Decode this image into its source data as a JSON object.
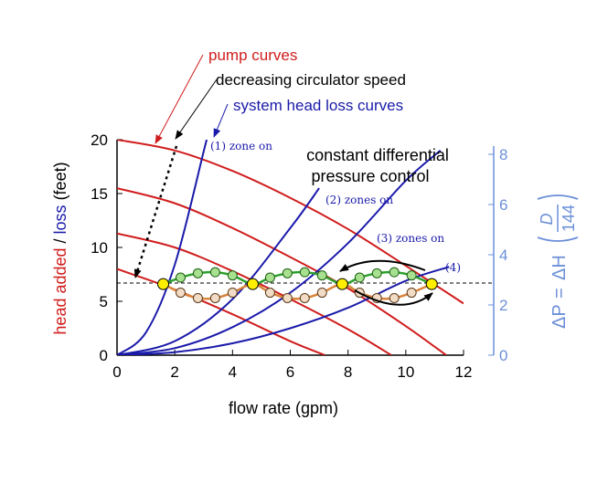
{
  "chart_data": {
    "type": "line",
    "xlabel": "flow rate (gpm)",
    "ylabel": {
      "part1": "head added",
      "sep": " / ",
      "part2": "loss",
      "part3": " (feet)"
    },
    "xlim": [
      0,
      12
    ],
    "ylim": [
      0,
      20
    ],
    "xticks": [
      0,
      2,
      4,
      6,
      8,
      10,
      12
    ],
    "yticks": [
      0,
      5,
      10,
      15,
      20
    ],
    "y2label": {
      "lhs": "ΔP",
      "eq": "=",
      "mid": "ΔH",
      "num": "D",
      "den": "144"
    },
    "y2lim": [
      0,
      8
    ],
    "y2ticks": [
      0,
      2,
      4,
      6,
      8
    ],
    "colors": {
      "pump": "#d01c1c",
      "system": "#1a1aaa",
      "secondary_axis": "#6b8fd8",
      "green_curve": "#2ca02c",
      "orange_curve": "#d9853b",
      "operating_point": "#ffee00",
      "arrow": "#000000"
    },
    "pump_curves": [
      {
        "name": "pump curve 1",
        "x": [
          0,
          2,
          4,
          6,
          8,
          10,
          12
        ],
        "y": [
          20.0,
          19.0,
          17.1,
          14.6,
          11.7,
          8.3,
          4.8
        ]
      },
      {
        "name": "pump curve 2",
        "x": [
          0,
          2,
          4,
          6,
          8,
          10,
          11.4
        ],
        "y": [
          15.5,
          14.1,
          11.8,
          9.1,
          6.2,
          2.7,
          0
        ]
      },
      {
        "name": "pump curve 3",
        "x": [
          0,
          2,
          4,
          6,
          8,
          9.5
        ],
        "y": [
          11.3,
          10.0,
          7.8,
          5.2,
          2.4,
          0
        ]
      },
      {
        "name": "pump curve 4",
        "x": [
          0,
          2,
          4,
          6,
          7.2
        ],
        "y": [
          8.0,
          6.1,
          3.8,
          1.3,
          0
        ]
      }
    ],
    "system_curves": [
      {
        "name": "(1) zone on",
        "x": [
          0,
          1,
          2,
          3,
          3.1
        ],
        "y": [
          0,
          2.1,
          8.4,
          18.9,
          20.0
        ]
      },
      {
        "name": "(2) zones on",
        "x": [
          0,
          2,
          4,
          6,
          7.0
        ],
        "y": [
          0,
          1.3,
          5.2,
          11.8,
          15.5
        ]
      },
      {
        "name": "(3) zones on",
        "x": [
          0,
          2,
          4,
          6,
          8,
          10,
          11.2
        ],
        "y": [
          0,
          0.65,
          2.6,
          5.8,
          10.4,
          16.2,
          19.0
        ]
      },
      {
        "name": "(4)",
        "x": [
          0,
          2,
          4,
          6,
          8,
          10,
          11.5
        ],
        "y": [
          0,
          0.28,
          1.1,
          2.5,
          4.4,
          6.9,
          8.2
        ]
      }
    ],
    "reference_line": {
      "y": 6.7,
      "style": "dashed"
    },
    "operating_points": {
      "x": [
        1.6,
        4.7,
        7.8,
        10.9
      ],
      "y": [
        6.6,
        6.6,
        6.6,
        6.6
      ]
    },
    "green_curve": {
      "x": [
        1.6,
        2.2,
        2.8,
        3.4,
        4.0,
        4.7,
        5.3,
        5.9,
        6.5,
        7.1,
        7.8,
        8.4,
        9.0,
        9.6,
        10.2,
        10.9
      ],
      "y": [
        6.6,
        7.2,
        7.6,
        7.7,
        7.4,
        6.6,
        7.2,
        7.6,
        7.7,
        7.4,
        6.6,
        7.2,
        7.6,
        7.7,
        7.4,
        6.6
      ]
    },
    "orange_curve": {
      "x": [
        1.6,
        2.2,
        2.8,
        3.4,
        4.0,
        4.7,
        5.3,
        5.9,
        6.5,
        7.1,
        7.8,
        8.4,
        9.0,
        9.6,
        10.2,
        10.9
      ],
      "y": [
        6.6,
        5.8,
        5.3,
        5.3,
        5.8,
        6.6,
        5.8,
        5.3,
        5.3,
        5.8,
        6.6,
        5.8,
        5.3,
        5.3,
        5.8,
        6.6
      ]
    },
    "annotations": {
      "pump_curves": "pump curves",
      "circulator": "decreasing circulator speed",
      "system_head": "system head loss curves",
      "control_line1": "constant differential",
      "control_line2": "pressure control",
      "zone1": "(1) zone on",
      "zone2": "(2) zones on",
      "zone3": "(3) zones on",
      "zone4": "(4)"
    }
  }
}
